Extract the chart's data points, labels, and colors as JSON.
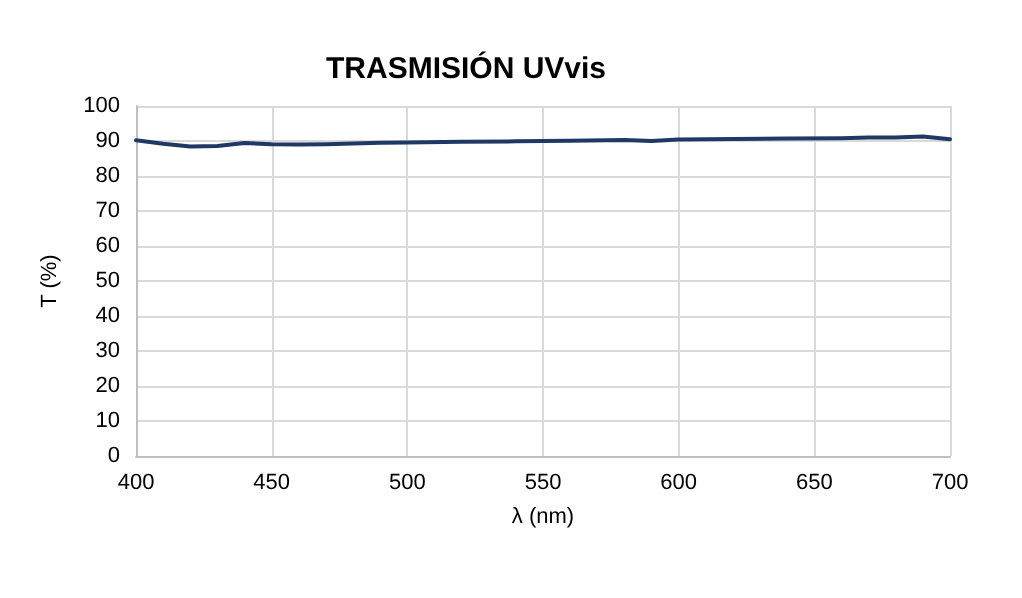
{
  "chart_data": {
    "type": "line",
    "title": "TRASMISIÓN UVvis",
    "xlabel": "λ (nm)",
    "ylabel": "T (%)",
    "x": [
      400,
      410,
      420,
      430,
      440,
      450,
      460,
      470,
      480,
      490,
      500,
      520,
      540,
      560,
      580,
      590,
      600,
      620,
      640,
      660,
      670,
      680,
      690,
      700
    ],
    "series": [
      {
        "color": "#1f3864",
        "values": [
          90.2,
          89.2,
          88.4,
          88.6,
          89.4,
          89.1,
          89.0,
          89.1,
          89.3,
          89.5,
          89.6,
          89.8,
          89.9,
          90.1,
          90.3,
          90.0,
          90.4,
          90.6,
          90.7,
          90.8,
          91.0,
          91.0,
          91.3,
          90.5
        ]
      }
    ],
    "xlim": [
      400,
      700
    ],
    "xticks": [
      400,
      450,
      500,
      550,
      600,
      650,
      700
    ],
    "ylim": [
      0,
      100
    ],
    "yticks": [
      0,
      10,
      20,
      30,
      40,
      50,
      60,
      70,
      80,
      90,
      100
    ],
    "grid": true,
    "marker": "none",
    "line_style": "solid"
  }
}
